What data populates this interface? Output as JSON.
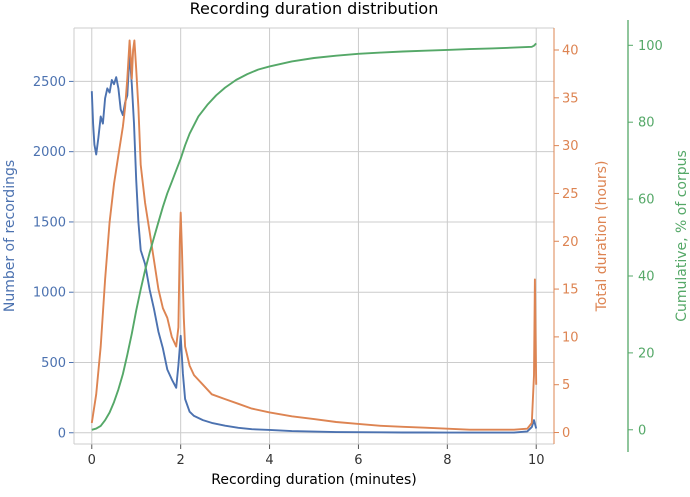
{
  "chart_data": {
    "type": "line",
    "title": "Recording duration distribution",
    "xlabel": "Recording duration (minutes)",
    "xlim": [
      -0.4,
      10.4
    ],
    "xticks": [
      0,
      2,
      4,
      6,
      8,
      10
    ],
    "axes": {
      "left": {
        "label": "Number of recordings",
        "color": "#4c72b0",
        "ylim": [
          -80,
          2880
        ],
        "ticks": [
          0,
          500,
          1000,
          1500,
          2000,
          2500
        ]
      },
      "right1": {
        "label": "Total duration (hours)",
        "color": "#dd8452",
        "ylim": [
          -1.2,
          42.3
        ],
        "ticks": [
          0,
          5,
          10,
          15,
          20,
          25,
          30,
          35,
          40
        ]
      },
      "right2": {
        "label": "Cumulative, % of corpus",
        "color": "#55a868",
        "ylim": [
          -3.7,
          104.5
        ],
        "ticks": [
          0,
          20,
          40,
          60,
          80,
          100
        ]
      }
    },
    "series": [
      {
        "name": "Number of recordings",
        "axis": "left",
        "color": "#4c72b0",
        "x": [
          0.0,
          0.03,
          0.06,
          0.1,
          0.15,
          0.2,
          0.25,
          0.3,
          0.35,
          0.4,
          0.45,
          0.5,
          0.55,
          0.6,
          0.65,
          0.7,
          0.75,
          0.8,
          0.85,
          0.9,
          0.95,
          1.0,
          1.05,
          1.1,
          1.2,
          1.3,
          1.4,
          1.5,
          1.6,
          1.7,
          1.8,
          1.9,
          1.95,
          2.0,
          2.05,
          2.1,
          2.2,
          2.3,
          2.5,
          2.7,
          3.0,
          3.3,
          3.6,
          4.0,
          4.5,
          5.0,
          5.5,
          6.0,
          6.5,
          7.0,
          7.5,
          8.0,
          8.5,
          9.0,
          9.5,
          9.8,
          9.9,
          9.95,
          10.0
        ],
        "values": [
          2430,
          2200,
          2050,
          1980,
          2100,
          2250,
          2200,
          2380,
          2450,
          2420,
          2510,
          2480,
          2530,
          2450,
          2300,
          2260,
          2350,
          2400,
          2700,
          2480,
          2200,
          1800,
          1500,
          1300,
          1200,
          1020,
          880,
          720,
          600,
          450,
          380,
          320,
          480,
          690,
          420,
          240,
          150,
          120,
          90,
          70,
          50,
          35,
          25,
          20,
          12,
          8,
          5,
          4,
          3,
          2,
          2,
          1,
          1,
          1,
          1,
          10,
          40,
          90,
          30
        ]
      },
      {
        "name": "Total duration (hours)",
        "axis": "right1",
        "color": "#dd8452",
        "x": [
          0.0,
          0.1,
          0.2,
          0.3,
          0.4,
          0.5,
          0.6,
          0.7,
          0.75,
          0.8,
          0.85,
          0.88,
          0.9,
          0.93,
          0.96,
          1.0,
          1.05,
          1.1,
          1.2,
          1.3,
          1.4,
          1.5,
          1.6,
          1.7,
          1.8,
          1.9,
          1.95,
          1.98,
          2.0,
          2.03,
          2.07,
          2.1,
          2.2,
          2.3,
          2.5,
          2.7,
          3.0,
          3.3,
          3.6,
          4.0,
          4.5,
          5.0,
          5.5,
          6.0,
          6.5,
          7.0,
          7.5,
          8.0,
          8.5,
          9.0,
          9.5,
          9.8,
          9.9,
          9.95,
          9.97,
          10.0
        ],
        "values": [
          1,
          4,
          9,
          16,
          22,
          26,
          29,
          32,
          34,
          37,
          41,
          39,
          37,
          40,
          41,
          38,
          34,
          28,
          24,
          21,
          18,
          15,
          13,
          12,
          10,
          9,
          11,
          20,
          23,
          19,
          12,
          9,
          7,
          6,
          5,
          4,
          3.5,
          3,
          2.5,
          2.1,
          1.7,
          1.4,
          1.1,
          0.9,
          0.7,
          0.6,
          0.5,
          0.4,
          0.3,
          0.3,
          0.3,
          0.4,
          1,
          6,
          16,
          5
        ]
      },
      {
        "name": "Cumulative, % of corpus",
        "axis": "right2",
        "color": "#55a868",
        "x": [
          0.0,
          0.1,
          0.2,
          0.3,
          0.4,
          0.5,
          0.6,
          0.7,
          0.8,
          0.9,
          1.0,
          1.1,
          1.2,
          1.3,
          1.4,
          1.5,
          1.6,
          1.7,
          1.8,
          1.9,
          2.0,
          2.1,
          2.2,
          2.4,
          2.6,
          2.8,
          3.0,
          3.25,
          3.5,
          3.75,
          4.0,
          4.5,
          5.0,
          5.5,
          6.0,
          6.5,
          7.0,
          7.5,
          8.0,
          8.5,
          9.0,
          9.5,
          9.9,
          9.95,
          10.0
        ],
        "values": [
          0,
          0.3,
          1.0,
          2.5,
          4.5,
          7.2,
          10.5,
          14.5,
          19.5,
          25,
          31,
          36.5,
          41.5,
          46,
          50,
          54,
          58,
          61.5,
          64.5,
          67.5,
          70.5,
          74,
          77,
          81.5,
          84.5,
          87,
          89,
          91,
          92.5,
          93.7,
          94.5,
          95.8,
          96.7,
          97.3,
          97.8,
          98.1,
          98.4,
          98.6,
          98.8,
          99.0,
          99.2,
          99.4,
          99.6,
          99.9,
          100.5
        ]
      }
    ]
  }
}
